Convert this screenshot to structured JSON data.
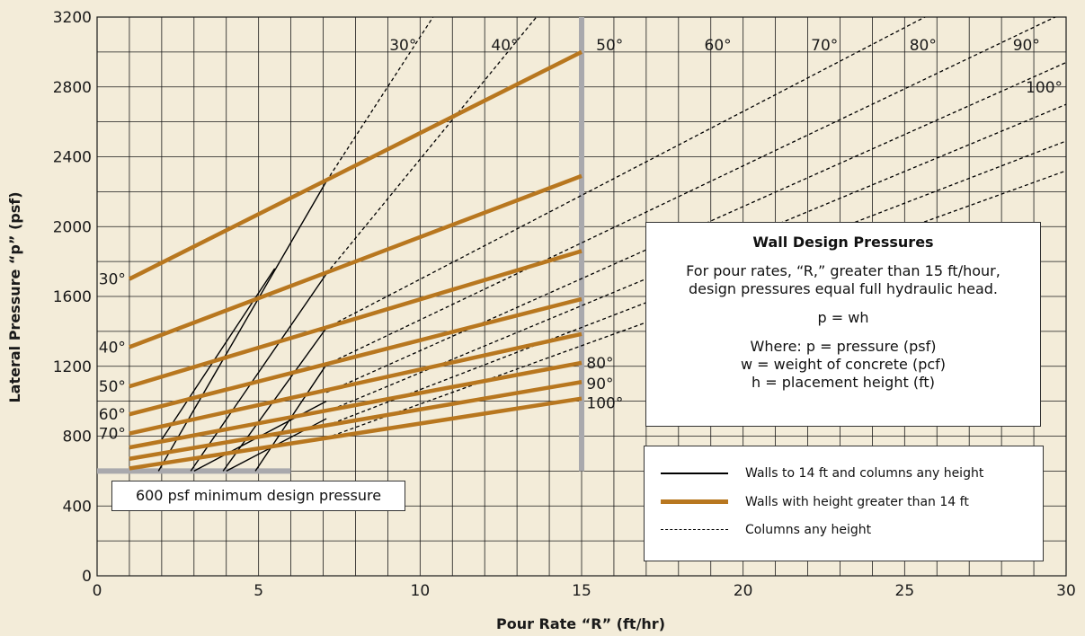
{
  "chart_data": {
    "type": "line",
    "title": "",
    "xlabel": "Pour Rate “R” (ft/hr)",
    "ylabel": "Lateral Pressure “p” (psf)",
    "xlim": [
      0,
      30
    ],
    "ylim": [
      0,
      3200
    ],
    "x_ticks": [
      "0",
      "5",
      "10",
      "15",
      "20",
      "25",
      "30"
    ],
    "y_ticks": [
      "0",
      "400",
      "800",
      "1200",
      "1600",
      "2000",
      "2400",
      "2800",
      "3200"
    ],
    "grid": true,
    "series_walls_over_14ft": [
      {
        "name": "30°",
        "x": [
          1,
          15
        ],
        "y": [
          1700,
          3000
        ]
      },
      {
        "name": "40°",
        "x": [
          1,
          15
        ],
        "y": [
          1310,
          2290
        ]
      },
      {
        "name": "50°",
        "x": [
          1,
          15
        ],
        "y": [
          1085,
          1860
        ]
      },
      {
        "name": "60°",
        "x": [
          1,
          15
        ],
        "y": [
          925,
          1585
        ]
      },
      {
        "name": "70°",
        "x": [
          1,
          15
        ],
        "y": [
          815,
          1385
        ]
      },
      {
        "name": "80°",
        "x": [
          1,
          15
        ],
        "y": [
          735,
          1220
        ]
      },
      {
        "name": "90°",
        "x": [
          1,
          15
        ],
        "y": [
          670,
          1110
        ]
      },
      {
        "name": "100°",
        "x": [
          1,
          15
        ],
        "y": [
          615,
          1015
        ]
      }
    ],
    "series_walls_to_14ft": [
      {
        "x": [
          1.9,
          7.1
        ],
        "y": [
          600,
          2260
        ]
      },
      {
        "x": [
          2.9,
          7.1
        ],
        "y": [
          600,
          1730
        ]
      },
      {
        "x": [
          3.9,
          7.1
        ],
        "y": [
          600,
          1420
        ]
      },
      {
        "x": [
          4.9,
          7.1
        ],
        "y": [
          600,
          1210
        ]
      },
      {
        "x": [
          2,
          5.5
        ],
        "y": [
          780,
          1760
        ]
      },
      {
        "x": [
          3,
          7.1
        ],
        "y": [
          600,
          1000
        ]
      },
      {
        "x": [
          4,
          7.1
        ],
        "y": [
          600,
          900
        ]
      }
    ],
    "series_columns": [
      {
        "name": "30°",
        "x": [
          7.1,
          10.4
        ],
        "y": [
          2260,
          3200
        ]
      },
      {
        "name": "40°",
        "x": [
          7.1,
          13.6
        ],
        "y": [
          1730,
          3200
        ]
      },
      {
        "name": "50°",
        "x": [
          7.1,
          30
        ],
        "y": [
          1420,
          3620
        ]
      },
      {
        "name": "60°",
        "x": [
          7.1,
          30
        ],
        "y": [
          1210,
          3230
        ]
      },
      {
        "name": "70°",
        "x": [
          7.1,
          30
        ],
        "y": [
          1050,
          2940
        ]
      },
      {
        "name": "80°",
        "x": [
          7.1,
          30
        ],
        "y": [
          940,
          2700
        ]
      },
      {
        "name": "90°",
        "x": [
          7.1,
          30
        ],
        "y": [
          860,
          2490
        ]
      },
      {
        "name": "100°",
        "x": [
          7.1,
          30
        ],
        "y": [
          790,
          2320
        ]
      }
    ],
    "reference_lines": {
      "min_pressure": {
        "y": 600,
        "x": [
          0,
          6
        ]
      },
      "max_rate": {
        "x": 15,
        "y": [
          600,
          3200
        ]
      }
    },
    "temperature_labels_left": [
      "30°",
      "40°",
      "50°",
      "60°",
      "70°"
    ],
    "temperature_labels_right": [
      "80°",
      "90°",
      "100°"
    ],
    "column_labels_top": [
      "30°",
      "40°",
      "50°",
      "60°",
      "70°",
      "80°",
      "90°",
      "100°"
    ],
    "colors": {
      "walls_over_14ft": "#b8771f",
      "walls_to_14ft": "#000000",
      "columns": "#000000",
      "reference": "#a9a9ad",
      "background": "#f3ecd9"
    }
  },
  "design_box": {
    "title": "Wall Design Pressures",
    "line1": "For pour rates, “R,” greater than 15 ft/hour,",
    "line2": "design pressures equal full hydraulic head.",
    "formula": "p = wh",
    "where1": "Where: p = pressure (psf)",
    "where2": "w = weight of concrete (pcf)",
    "where3": "h = placement height (ft)"
  },
  "min_note": "600 psf minimum design pressure",
  "legend": {
    "solid": "Walls to 14 ft and columns any height",
    "orange": "Walls with height greater than 14 ft",
    "dashed": "Columns any height"
  }
}
